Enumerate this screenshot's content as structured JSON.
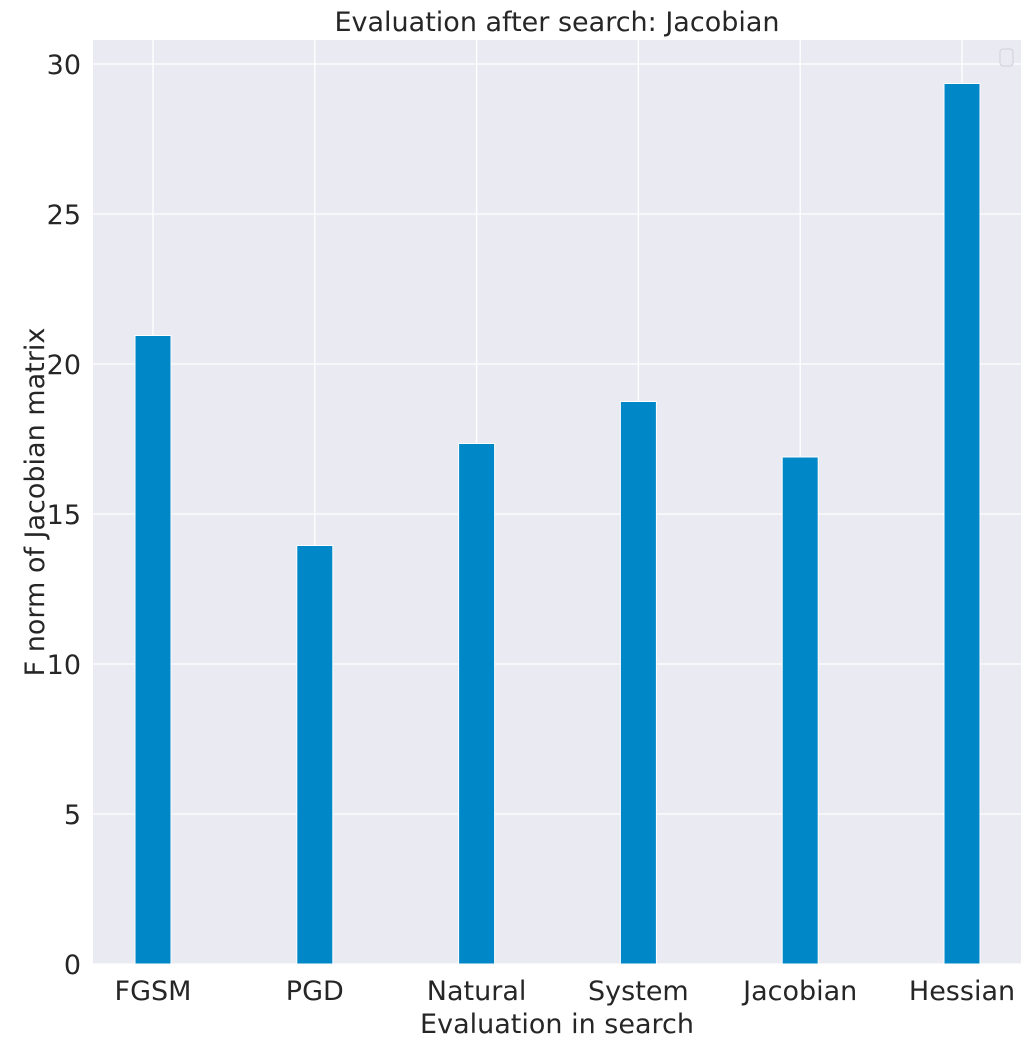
{
  "chart_data": {
    "type": "bar",
    "title": "Evaluation after search: Jacobian",
    "xlabel": "Evaluation in search",
    "ylabel": "F norm of Jacobian matrix",
    "categories": [
      "FGSM",
      "PGD",
      "Natural",
      "System",
      "Jacobian",
      "Hessian"
    ],
    "values": [
      20.95,
      13.95,
      17.35,
      18.75,
      16.9,
      29.35
    ],
    "ylim": [
      0,
      30.8
    ],
    "yticks": [
      0,
      5,
      10,
      15,
      20,
      25,
      30
    ],
    "grid": true,
    "legend": "top-right",
    "colors": {
      "bar": "#0087c8",
      "plot_background": "#eaeaf2",
      "grid": "#ffffff",
      "text": "#262626"
    }
  }
}
